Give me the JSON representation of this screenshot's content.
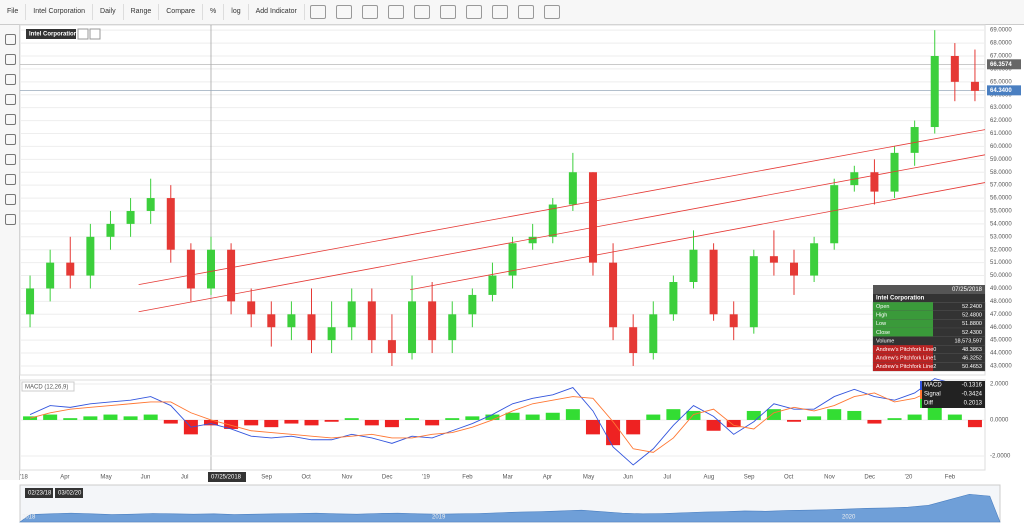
{
  "toolbar": {
    "items": [
      "File",
      "Intel Corporation",
      "Daily",
      "Range",
      "Compare",
      "%",
      "log",
      "Add Indicator"
    ]
  },
  "chart_data": [
    {
      "type": "candlestick",
      "title": "Intel Corporation",
      "categories": [
        "'18",
        null,
        "Apr",
        null,
        "May",
        null,
        "Jun",
        null,
        "Jul",
        null,
        null,
        null,
        "Sep",
        null,
        "Oct",
        null,
        "Nov",
        null,
        "Dec",
        null,
        "'19",
        null,
        "Feb",
        null,
        "Mar",
        null,
        "Apr",
        null,
        "May",
        null,
        "Jun",
        null,
        "Jul",
        null,
        "Aug",
        null,
        "Sep",
        null,
        "Oct",
        null,
        "Nov",
        null,
        "Dec",
        null,
        "'20",
        null,
        "Feb",
        null
      ],
      "open": [
        47,
        49,
        51,
        50,
        53,
        54,
        55,
        56,
        52,
        49,
        52,
        48,
        47,
        46,
        47,
        45,
        46,
        48,
        45,
        44,
        48,
        45,
        47,
        48.5,
        50,
        52.5,
        53,
        55.5,
        58,
        51,
        46,
        44,
        47,
        49.5,
        52,
        47,
        46,
        51.5,
        51,
        50,
        52.5,
        57,
        58,
        56.5,
        59.5,
        61.5,
        67,
        65
      ],
      "high": [
        50,
        52,
        53,
        54,
        55,
        56,
        57.5,
        57,
        52.5,
        53,
        52.5,
        49,
        48,
        48,
        49,
        48,
        49,
        49,
        47,
        50,
        49.5,
        48,
        49,
        51,
        53,
        54,
        56,
        59.5,
        58,
        52.5,
        47,
        48,
        50,
        53.5,
        52.5,
        48,
        52,
        53.5,
        52,
        53,
        57.5,
        58.5,
        59,
        60,
        62,
        69,
        68,
        67.5
      ],
      "low": [
        46,
        48,
        49,
        49,
        52,
        53,
        54,
        51,
        48,
        48.5,
        47,
        46,
        44.5,
        45,
        44,
        44,
        45,
        44,
        43,
        43.5,
        44,
        44,
        46,
        48,
        49,
        52,
        52.5,
        55,
        50,
        45,
        43,
        43.5,
        46.5,
        49,
        46.5,
        45,
        45.5,
        50,
        48.5,
        49.5,
        52,
        56.5,
        55.5,
        56,
        58.5,
        61,
        63.5,
        63.5
      ],
      "close": [
        49,
        51,
        50,
        53,
        54,
        55,
        56,
        52,
        49,
        52,
        48,
        47,
        46,
        47,
        45,
        46,
        48,
        45,
        44,
        48,
        45,
        47,
        48.5,
        50,
        52.5,
        53,
        55.5,
        58,
        51,
        46,
        44,
        47,
        49.5,
        52,
        47,
        46,
        51.5,
        51,
        50,
        52.5,
        57,
        58,
        56.5,
        59.5,
        61.5,
        67,
        65,
        64.3
      ],
      "up_color": "#3ccf3c",
      "down_color": "#e53935",
      "ylim": [
        42.3,
        69.4
      ],
      "yticks": [
        {
          "value": 43,
          "label": "43.0000"
        },
        {
          "value": 44,
          "label": "44.0000"
        },
        {
          "value": 45,
          "label": "45.0000"
        },
        {
          "value": 46,
          "label": "46.0000"
        },
        {
          "value": 47,
          "label": "47.0000"
        },
        {
          "value": 48,
          "label": "48.0000"
        },
        {
          "value": 49,
          "label": "49.0000"
        },
        {
          "value": 50,
          "label": "50.0000"
        },
        {
          "value": 51,
          "label": "51.0000"
        },
        {
          "value": 52,
          "label": "52.0000"
        },
        {
          "value": 53,
          "label": "53.0000"
        },
        {
          "value": 54,
          "label": "54.0000"
        },
        {
          "value": 55,
          "label": "55.0000"
        },
        {
          "value": 56,
          "label": "56.0000"
        },
        {
          "value": 57,
          "label": "57.0000"
        },
        {
          "value": 58,
          "label": "58.0000"
        },
        {
          "value": 59,
          "label": "59.0000"
        },
        {
          "value": 60,
          "label": "60.0000"
        },
        {
          "value": 61,
          "label": "61.0000"
        },
        {
          "value": 62,
          "label": "62.0000"
        },
        {
          "value": 63,
          "label": "63.0000"
        },
        {
          "value": 64,
          "label": "64.0000"
        },
        {
          "value": 65,
          "label": "65.0000"
        },
        {
          "value": 66,
          "label": "66.0000"
        },
        {
          "value": 67,
          "label": "67.0000"
        },
        {
          "value": 68,
          "label": "68.0000"
        },
        {
          "value": 69,
          "label": "69.0000"
        }
      ],
      "grid": true,
      "hlines": [
        {
          "value": 66.3574,
          "label": "66.3574"
        },
        {
          "value": 64.34,
          "label": "64.3400"
        }
      ],
      "pitchfork": {
        "color": "#e53935",
        "lines": [
          {
            "x": [
              5.4,
              47.5
            ],
            "y": [
              49.3,
              61.3
            ]
          },
          {
            "x": [
              5.4,
              47.5
            ],
            "y": [
              47.2,
              59.35
            ]
          },
          {
            "x": [
              18.9,
              47.5
            ],
            "y": [
              48.9,
              57.2
            ]
          }
        ]
      },
      "crosshair": "07/25/2018",
      "tooltip": {
        "date": "07/25/2018",
        "name": "Intel Corporation",
        "rows": [
          {
            "label": "Open",
            "value": "52.2400"
          },
          {
            "label": "High",
            "value": "52.4800"
          },
          {
            "label": "Low",
            "value": "51.8800"
          },
          {
            "label": "Close",
            "value": "52.4300"
          },
          {
            "label": "Volume",
            "value": "18,573,597"
          },
          {
            "label": "Andrew's Pitchfork Line0",
            "value": "48.3863"
          },
          {
            "label": "Andrew's Pitchfork Line1",
            "value": "46.3252"
          },
          {
            "label": "Andrew's Pitchfork Line2",
            "value": "50.4653"
          }
        ]
      }
    },
    {
      "type": "macd",
      "title": "MACD (12,26,9)",
      "series": [
        {
          "name": "MACD",
          "color": "#3355dd",
          "values": [
            0.3,
            0.8,
            0.7,
            0.9,
            1.0,
            1.1,
            1.3,
            0.8,
            -0.4,
            -0.2,
            -0.5,
            -0.9,
            -1.0,
            -0.9,
            -1.1,
            -1.1,
            -0.8,
            -1.0,
            -1.3,
            -0.9,
            -1.0,
            -0.6,
            -0.2,
            0.3,
            0.9,
            1.2,
            1.4,
            1.8,
            0.5,
            -1.5,
            -2.5,
            -1.6,
            -0.3,
            0.8,
            0.2,
            -0.8,
            -0.1,
            0.9,
            0.6,
            0.6,
            1.3,
            1.7,
            1.3,
            1.1,
            1.5,
            2.3,
            2.0,
            0.8
          ]
        },
        {
          "name": "Signal",
          "color": "#ff7733",
          "values": [
            0.1,
            0.4,
            0.6,
            0.7,
            0.8,
            0.9,
            1.0,
            1.0,
            0.4,
            0,
            -0.3,
            -0.6,
            -0.7,
            -0.8,
            -0.9,
            -1.0,
            -0.9,
            -0.8,
            -1.0,
            -1.0,
            -0.8,
            -0.7,
            -0.4,
            0,
            0.5,
            0.9,
            1.1,
            1.3,
            1.2,
            -0.1,
            -1.6,
            -1.8,
            -1.0,
            0.3,
            0.6,
            -0.3,
            -0.5,
            0.4,
            0.7,
            0.5,
            0.8,
            1.3,
            1.5,
            1.0,
            1.2,
            1.7,
            1.8,
            1.2
          ]
        },
        {
          "name": "Diff",
          "color": "#33dd33",
          "down_color": "#ee2222",
          "values": [
            0.2,
            0.3,
            0.1,
            0.2,
            0.3,
            0.2,
            0.3,
            -0.2,
            -0.8,
            -0.3,
            -0.5,
            -0.3,
            -0.4,
            -0.2,
            -0.3,
            -0.1,
            0.1,
            -0.3,
            -0.4,
            0.1,
            -0.3,
            0.1,
            0.2,
            0.3,
            0.4,
            0.3,
            0.4,
            0.6,
            -0.8,
            -1.4,
            -0.8,
            0.3,
            0.6,
            0.5,
            -0.6,
            -0.4,
            0.5,
            0.6,
            -0.1,
            0.2,
            0.6,
            0.5,
            -0.2,
            0.1,
            0.3,
            0.7,
            0.3,
            -0.4
          ]
        }
      ],
      "legend_values": [
        "-0.1316",
        "-0.3424",
        "0.2013"
      ],
      "ylim": [
        -2.78,
        2.22
      ],
      "yticks": [
        {
          "value": 2,
          "label": "2.0000"
        },
        {
          "value": 0,
          "label": "0.0000"
        },
        {
          "value": -2,
          "label": "-2.0000"
        }
      ]
    }
  ],
  "navigator": {
    "start": "02/23/18",
    "end": "03/02/20",
    "labels": [
      "2018",
      "2019",
      "2020"
    ],
    "color": "#6f9fd8",
    "values": [
      20,
      22,
      24,
      22,
      20,
      21,
      23,
      22,
      21,
      22,
      20,
      21,
      22,
      23,
      24,
      22,
      21,
      23,
      24,
      22,
      21,
      22,
      23,
      25,
      27,
      28,
      30,
      32,
      28,
      24,
      22,
      23,
      25,
      27,
      28,
      30,
      29,
      31,
      32,
      33,
      35,
      37,
      38,
      40,
      45,
      60,
      75,
      70
    ],
    "ylim": [
      0,
      100
    ]
  }
}
